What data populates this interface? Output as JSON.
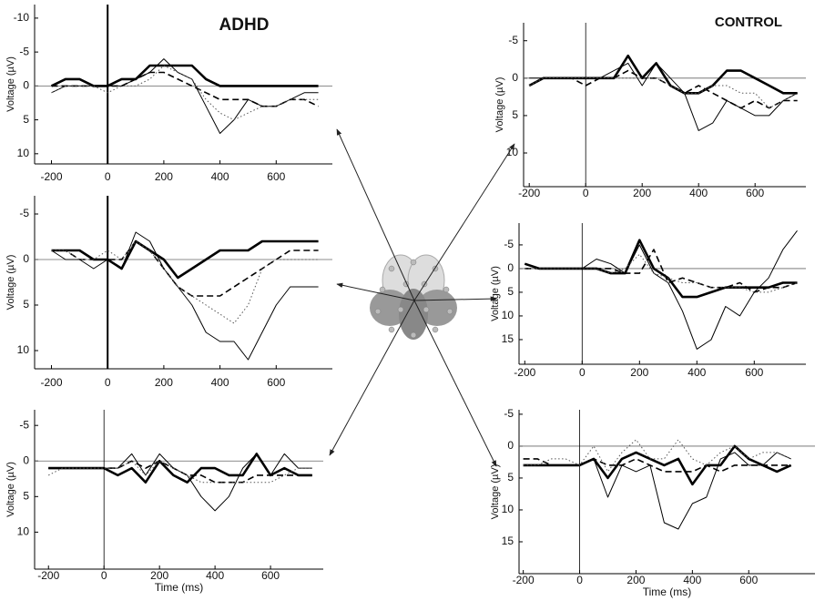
{
  "chart_data": [
    {
      "type": "line",
      "title": "ADHD",
      "ylabel": "Voltage (µV)",
      "x": [
        -200,
        -150,
        -100,
        -50,
        0,
        50,
        100,
        150,
        200,
        250,
        300,
        350,
        400,
        450,
        500,
        550,
        600,
        650,
        700,
        750
      ],
      "xlim": [
        -260,
        800
      ],
      "xticks": [
        -200,
        0,
        200,
        400,
        600
      ],
      "ylim": [
        11.5,
        -12
      ],
      "yticks": [
        -10,
        -5,
        0,
        5,
        10
      ],
      "series": [
        {
          "color": "#000000",
          "style": "thick",
          "values": [
            0,
            -1,
            -1,
            0,
            0,
            -1,
            -1,
            -3,
            -3,
            -3,
            -3,
            -1,
            0,
            0,
            0,
            0,
            0,
            0,
            0,
            0
          ]
        },
        {
          "color": "#000000",
          "style": "solid",
          "values": [
            1,
            0,
            0,
            0,
            0,
            0,
            -1,
            -2,
            -4,
            -2,
            -1,
            3,
            7,
            5,
            2,
            3,
            3,
            2,
            1,
            1
          ]
        },
        {
          "color": "#000000",
          "style": "dashed",
          "values": [
            0,
            0,
            0,
            0,
            0,
            0,
            -1,
            -2,
            -2,
            -1,
            0,
            1,
            2,
            2,
            2,
            3,
            3,
            2,
            2,
            3
          ]
        },
        {
          "color": "#555555",
          "style": "dotted",
          "values": [
            1,
            0,
            0,
            0,
            1,
            0,
            0,
            -1,
            -3,
            -2,
            -1,
            2,
            4,
            5,
            4,
            3,
            3,
            2,
            2,
            2
          ]
        }
      ]
    },
    {
      "type": "line",
      "ylabel": "Voltage (µV)",
      "x": [
        -200,
        -150,
        -100,
        -50,
        0,
        50,
        100,
        150,
        200,
        250,
        300,
        350,
        400,
        450,
        500,
        550,
        600,
        650,
        700,
        750
      ],
      "xlim": [
        -260,
        800
      ],
      "xticks": [
        -200,
        0,
        200,
        400,
        600
      ],
      "ylim": [
        12,
        -7
      ],
      "yticks": [
        -5,
        0,
        5,
        10
      ],
      "series": [
        {
          "color": "#000000",
          "style": "thick",
          "values": [
            -1,
            -1,
            -1,
            0,
            0,
            1,
            -2,
            -1,
            0,
            2,
            1,
            0,
            -1,
            -1,
            -1,
            -2,
            -2,
            -2,
            -2,
            -2
          ]
        },
        {
          "color": "#000000",
          "style": "solid",
          "values": [
            -1,
            0,
            0,
            1,
            0,
            1,
            -3,
            -2,
            1,
            3,
            5,
            8,
            9,
            9,
            11,
            8,
            5,
            3,
            3,
            3
          ]
        },
        {
          "color": "#000000",
          "style": "dashed",
          "values": [
            -1,
            -1,
            0,
            0,
            0,
            0,
            -2,
            -1,
            1,
            3,
            4,
            4,
            4,
            3,
            2,
            1,
            0,
            -1,
            -1,
            -1
          ]
        },
        {
          "color": "#555555",
          "style": "dotted",
          "values": [
            -1,
            -1,
            0,
            0,
            -1,
            0,
            -2,
            -1,
            1,
            3,
            4,
            5,
            6,
            7,
            5,
            1,
            0,
            0,
            0,
            0
          ]
        }
      ]
    },
    {
      "type": "line",
      "ylabel": "Voltage (µV)",
      "xlabel": "Time (ms)",
      "x": [
        -200,
        -150,
        -100,
        -50,
        0,
        50,
        100,
        150,
        200,
        250,
        300,
        350,
        400,
        450,
        500,
        550,
        600,
        650,
        700,
        750
      ],
      "xlim": [
        -250,
        790
      ],
      "xticks": [
        -200,
        0,
        200,
        400,
        600
      ],
      "ylim": [
        15.2,
        -7.2
      ],
      "yticks": [
        -5,
        0,
        5,
        10
      ],
      "series": [
        {
          "color": "#000000",
          "style": "thick",
          "values": [
            1,
            1,
            1,
            1,
            1,
            2,
            1,
            3,
            0,
            2,
            3,
            1,
            1,
            2,
            2,
            -1,
            2,
            1,
            2,
            2
          ]
        },
        {
          "color": "#000000",
          "style": "solid",
          "values": [
            1,
            1,
            1,
            1,
            1,
            1,
            -1,
            2,
            -1,
            1,
            2,
            5,
            7,
            5,
            1,
            -1,
            2,
            -1,
            1,
            1
          ]
        },
        {
          "color": "#000000",
          "style": "dashed",
          "values": [
            1,
            1,
            1,
            1,
            1,
            1,
            0,
            1,
            0,
            1,
            2,
            2,
            3,
            3,
            3,
            2,
            2,
            2,
            2,
            2
          ]
        },
        {
          "color": "#555555",
          "style": "dotted",
          "values": [
            2,
            1,
            1,
            1,
            1,
            1,
            0,
            2,
            0,
            1,
            2,
            3,
            3,
            3,
            3,
            3,
            3,
            2,
            1,
            1
          ]
        }
      ]
    },
    {
      "type": "line",
      "title": "CONTROL",
      "ylabel": "Voltage (µV)",
      "x": [
        -200,
        -150,
        -100,
        -50,
        0,
        50,
        100,
        150,
        200,
        250,
        300,
        350,
        400,
        450,
        500,
        550,
        600,
        650,
        700,
        750
      ],
      "xlim": [
        -220,
        780
      ],
      "xticks": [
        -200,
        0,
        200,
        400,
        600
      ],
      "ylim": [
        14.5,
        -7.4
      ],
      "yticks": [
        -5,
        0,
        5,
        10
      ],
      "series": [
        {
          "color": "#000000",
          "style": "thick",
          "values": [
            1,
            0,
            0,
            0,
            0,
            0,
            0,
            -3,
            0,
            -2,
            1,
            2,
            2,
            1,
            -1,
            -1,
            0,
            1,
            2,
            2
          ]
        },
        {
          "color": "#000000",
          "style": "solid",
          "values": [
            0,
            0,
            0,
            0,
            0,
            0,
            -1,
            -2,
            1,
            -2,
            0,
            2,
            7,
            6,
            3,
            4,
            5,
            5,
            3,
            2
          ]
        },
        {
          "color": "#000000",
          "style": "dashed",
          "values": [
            1,
            0,
            0,
            0,
            1,
            0,
            0,
            -1,
            0,
            0,
            1,
            2,
            1,
            2,
            3,
            4,
            3,
            4,
            3,
            3
          ]
        },
        {
          "color": "#555555",
          "style": "dotted",
          "values": [
            1,
            0,
            0,
            0,
            0,
            0,
            0,
            0,
            0,
            0,
            1,
            2,
            2,
            1,
            1,
            2,
            2,
            4,
            3,
            2
          ]
        }
      ]
    },
    {
      "type": "line",
      "ylabel": "Voltage (µV)",
      "x": [
        -200,
        -150,
        -100,
        -50,
        0,
        50,
        100,
        150,
        200,
        250,
        300,
        350,
        400,
        450,
        500,
        550,
        600,
        650,
        700,
        750
      ],
      "xlim": [
        -220,
        780
      ],
      "xticks": [
        -200,
        0,
        200,
        400,
        600
      ],
      "ylim": [
        20.2,
        -9.6
      ],
      "yticks": [
        -5,
        0,
        5,
        10,
        15
      ],
      "series": [
        {
          "color": "#000000",
          "style": "thick",
          "values": [
            -1,
            0,
            0,
            0,
            0,
            0,
            1,
            1,
            -6,
            0,
            2,
            6,
            6,
            5,
            4,
            4,
            4,
            4,
            3,
            3
          ]
        },
        {
          "color": "#000000",
          "style": "solid",
          "values": [
            -1,
            0,
            0,
            0,
            0,
            -2,
            -1,
            1,
            -5,
            1,
            3,
            9,
            17,
            15,
            8,
            10,
            5,
            2,
            -4,
            -8
          ]
        },
        {
          "color": "#000000",
          "style": "dashed",
          "values": [
            0,
            0,
            0,
            0,
            0,
            0,
            0,
            1,
            1,
            -4,
            3,
            2,
            3,
            4,
            4,
            3,
            5,
            4,
            4,
            3
          ]
        },
        {
          "color": "#555555",
          "style": "dotted",
          "values": [
            0,
            0,
            0,
            0,
            0,
            0,
            1,
            0,
            -3,
            1,
            2,
            3,
            3,
            4,
            4,
            4,
            5,
            5,
            4,
            3
          ]
        }
      ]
    },
    {
      "type": "line",
      "ylabel": "Voltage (µV)",
      "xlabel": "Time (ms)",
      "x": [
        -200,
        -150,
        -100,
        -50,
        0,
        50,
        100,
        150,
        200,
        250,
        300,
        350,
        400,
        450,
        500,
        550,
        600,
        650,
        700,
        750
      ],
      "xlim": [
        -215,
        835
      ],
      "xticks": [
        -200,
        0,
        200,
        400,
        600
      ],
      "ylim": [
        20,
        -5.7
      ],
      "yticks": [
        -5,
        0,
        5,
        10,
        15
      ],
      "series": [
        {
          "color": "#000000",
          "style": "thick",
          "values": [
            3,
            3,
            3,
            3,
            3,
            2,
            5,
            2,
            1,
            2,
            3,
            2,
            6,
            3,
            3,
            0,
            2,
            3,
            4,
            3
          ]
        },
        {
          "color": "#000000",
          "style": "solid",
          "values": [
            3,
            3,
            3,
            3,
            3,
            2,
            8,
            3,
            4,
            3,
            12,
            13,
            9,
            8,
            2,
            1,
            3,
            3,
            1,
            2
          ]
        },
        {
          "color": "#000000",
          "style": "dashed",
          "values": [
            2,
            2,
            3,
            3,
            3,
            2,
            3,
            3,
            2,
            3,
            4,
            4,
            4,
            3,
            4,
            3,
            3,
            3,
            3,
            3
          ]
        },
        {
          "color": "#555555",
          "style": "dotted",
          "values": [
            3,
            3,
            2,
            2,
            3,
            0,
            4,
            1,
            -1,
            2,
            2,
            -1,
            2,
            3,
            1,
            0,
            2,
            1,
            1,
            2
          ]
        }
      ]
    }
  ]
}
